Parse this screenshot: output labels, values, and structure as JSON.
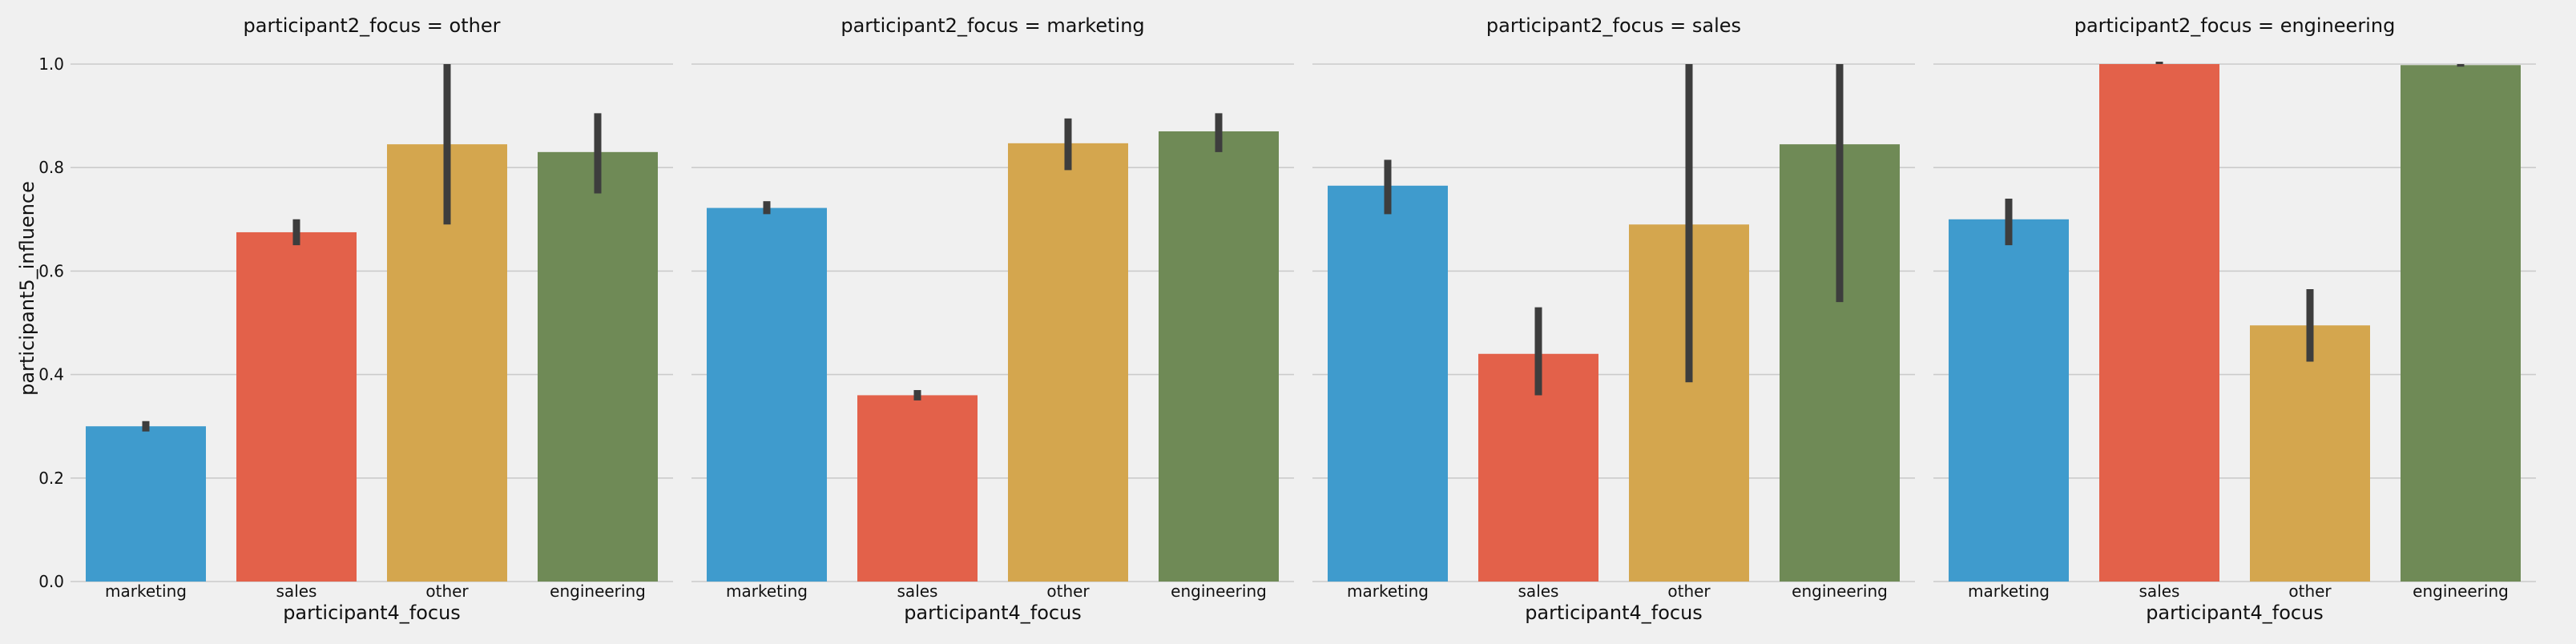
{
  "chart_data": {
    "type": "bar",
    "facet_variable": "participant2_focus",
    "xlabel": "participant4_focus",
    "ylabel": "participant5_influence",
    "ylim": [
      0,
      1
    ],
    "y_ticks": [
      "0.0",
      "0.2",
      "0.4",
      "0.6",
      "0.8",
      "1.0"
    ],
    "grid": true,
    "categories": [
      "marketing",
      "sales",
      "other",
      "engineering"
    ],
    "colors": [
      "#3f9bcd",
      "#e3614a",
      "#d4a64e",
      "#6f8a56"
    ],
    "panels": [
      {
        "title": "participant2_focus = other",
        "values": [
          0.3,
          0.675,
          0.845,
          0.83
        ],
        "ci": [
          [
            0.29,
            0.31
          ],
          [
            0.65,
            0.7
          ],
          [
            0.69,
            1.0
          ],
          [
            0.75,
            0.905
          ]
        ]
      },
      {
        "title": "participant2_focus = marketing",
        "values": [
          0.722,
          0.36,
          0.847,
          0.87
        ],
        "ci": [
          [
            0.71,
            0.735
          ],
          [
            0.35,
            0.37
          ],
          [
            0.795,
            0.895
          ],
          [
            0.83,
            0.905
          ]
        ]
      },
      {
        "title": "participant2_focus = sales",
        "values": [
          0.765,
          0.44,
          0.69,
          0.845
        ],
        "ci": [
          [
            0.71,
            0.815
          ],
          [
            0.36,
            0.53
          ],
          [
            0.385,
            1.0
          ],
          [
            0.54,
            1.0
          ]
        ]
      },
      {
        "title": "participant2_focus = engineering",
        "values": [
          0.7,
          1.0,
          0.495,
          0.998
        ],
        "ci": [
          [
            0.65,
            0.74
          ],
          [
            1.0,
            1.0
          ],
          [
            0.425,
            0.565
          ],
          [
            0.995,
            1.0
          ]
        ]
      }
    ]
  }
}
